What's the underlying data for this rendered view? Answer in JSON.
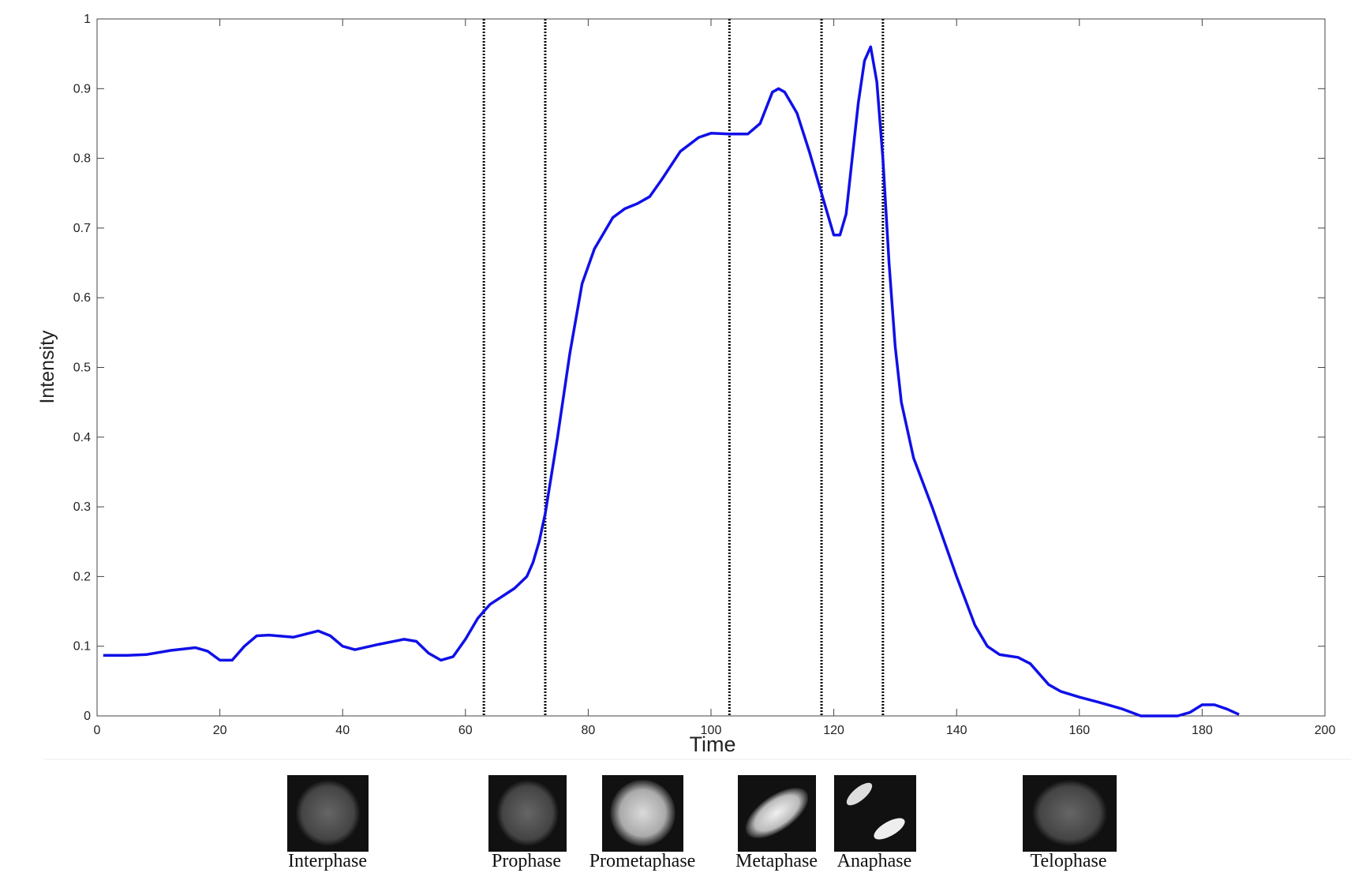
{
  "chart_data": {
    "type": "line",
    "x_label": "Time",
    "y_label": "Intensity",
    "xlim": [
      0,
      200
    ],
    "ylim": [
      0,
      1
    ],
    "xticks": [
      0,
      20,
      40,
      60,
      80,
      100,
      120,
      140,
      160,
      180,
      200
    ],
    "yticks": [
      0,
      0.1,
      0.2,
      0.3,
      0.4,
      0.5,
      0.6,
      0.7,
      0.8,
      0.9,
      1
    ],
    "vlines": [
      63,
      73,
      103,
      118,
      128
    ],
    "series": [
      {
        "color": "#1010e8",
        "x": [
          1,
          5,
          8,
          12,
          16,
          18,
          20,
          22,
          24,
          26,
          28,
          32,
          36,
          38,
          40,
          42,
          46,
          50,
          52,
          54,
          56,
          58,
          60,
          62,
          64,
          68,
          70,
          71,
          72,
          73,
          75,
          77,
          79,
          81,
          84,
          86,
          88,
          90,
          92,
          95,
          98,
          100,
          103,
          106,
          108,
          110,
          111,
          112,
          114,
          116,
          118,
          120,
          121,
          122,
          123,
          124,
          125,
          126,
          127,
          128,
          129,
          130,
          131,
          133,
          136,
          140,
          143,
          145,
          147,
          150,
          152,
          155,
          157,
          160,
          163,
          167,
          170,
          176,
          178,
          180,
          182,
          184,
          186
        ],
        "values": [
          0.087,
          0.087,
          0.088,
          0.094,
          0.098,
          0.093,
          0.08,
          0.08,
          0.1,
          0.115,
          0.116,
          0.113,
          0.122,
          0.115,
          0.1,
          0.095,
          0.103,
          0.11,
          0.107,
          0.09,
          0.08,
          0.085,
          0.11,
          0.14,
          0.16,
          0.183,
          0.2,
          0.22,
          0.25,
          0.29,
          0.4,
          0.52,
          0.62,
          0.67,
          0.715,
          0.728,
          0.735,
          0.745,
          0.77,
          0.81,
          0.83,
          0.836,
          0.835,
          0.835,
          0.85,
          0.895,
          0.9,
          0.895,
          0.865,
          0.81,
          0.75,
          0.69,
          0.69,
          0.72,
          0.8,
          0.88,
          0.94,
          0.96,
          0.91,
          0.8,
          0.65,
          0.53,
          0.45,
          0.37,
          0.3,
          0.2,
          0.13,
          0.1,
          0.088,
          0.084,
          0.075,
          0.045,
          0.035,
          0.027,
          0.02,
          0.01,
          0,
          0,
          0.005,
          0.016,
          0.016,
          0.01,
          0.002
        ]
      }
    ],
    "annotations": [
      "Interphase",
      "Prophase",
      "Prometaphase",
      "Metaphase",
      "Anaphase",
      "Telophase"
    ]
  }
}
